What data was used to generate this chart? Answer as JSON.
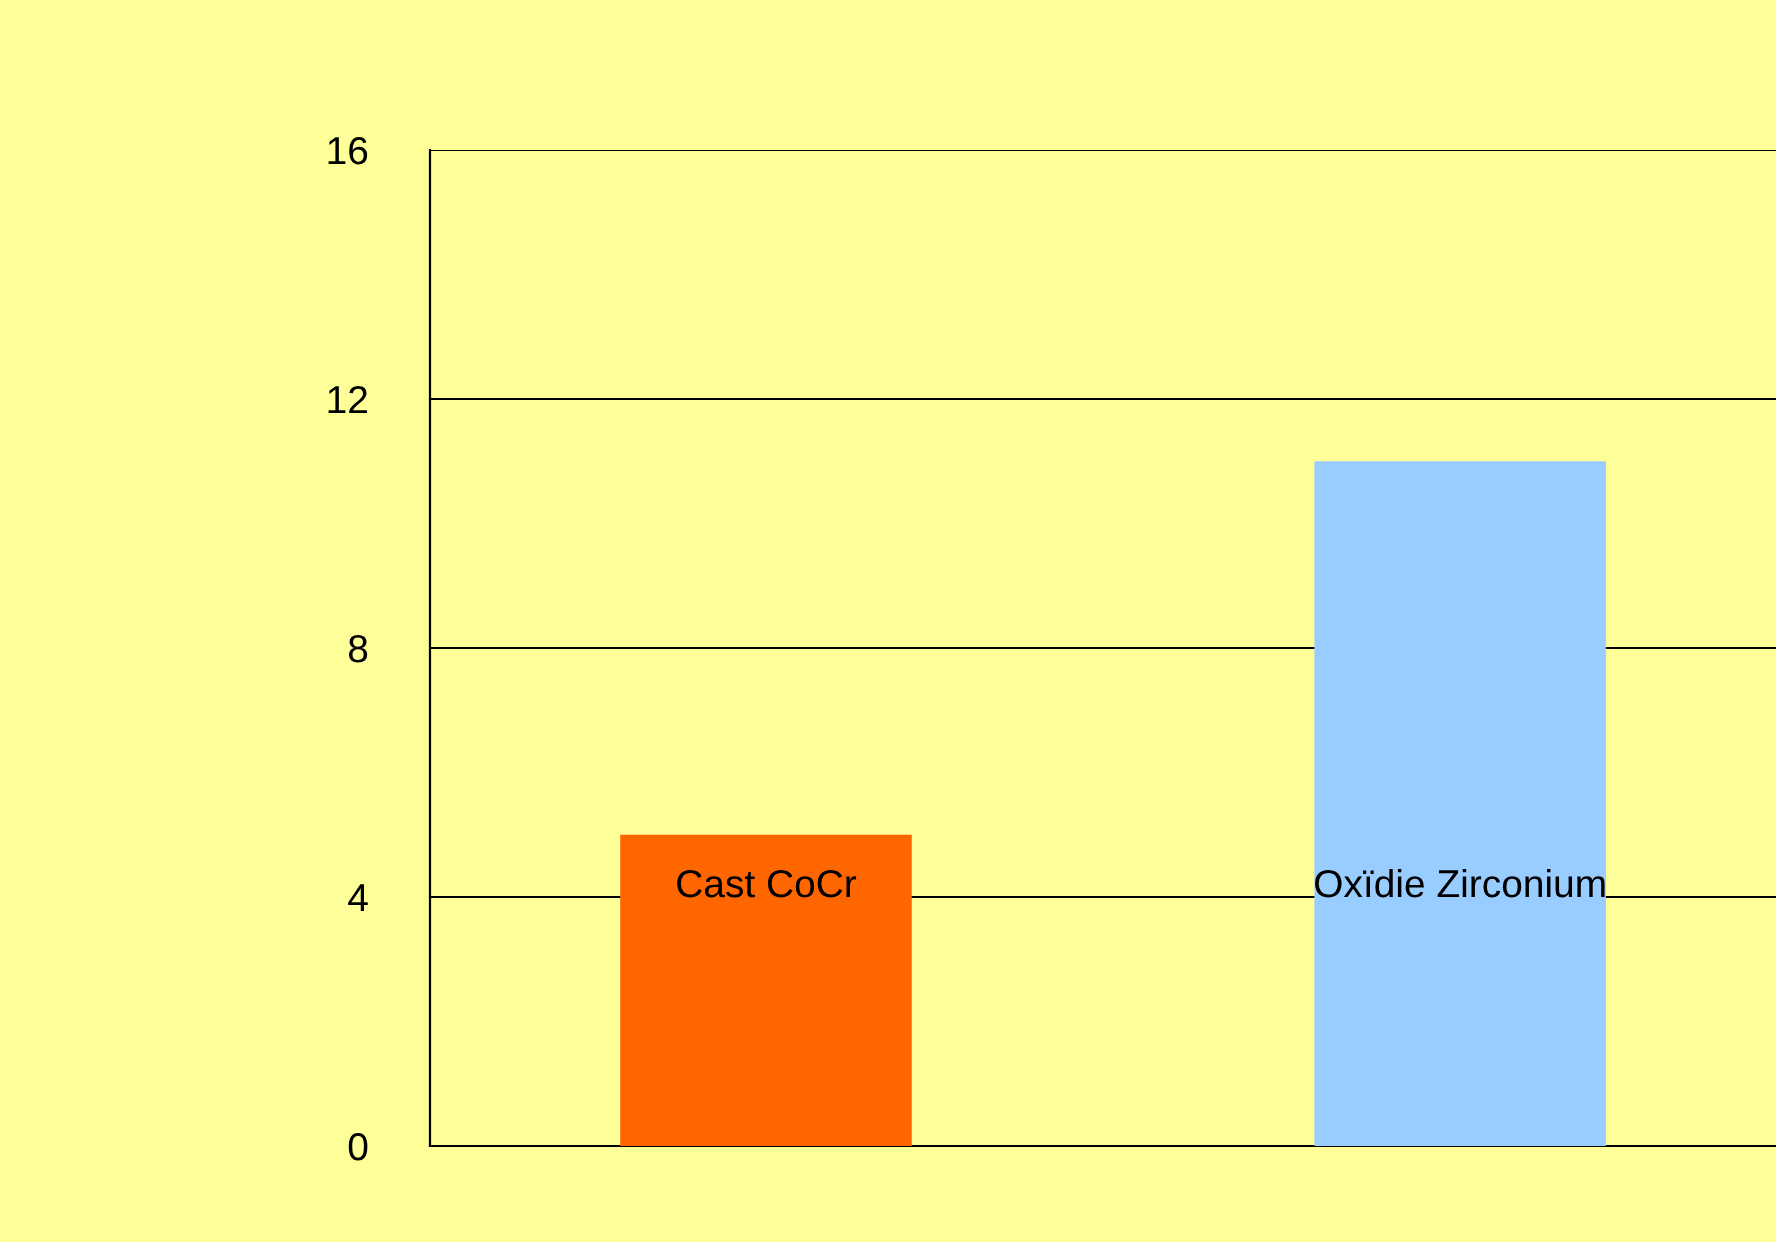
{
  "chart_data": {
    "type": "bar",
    "categories": [
      "Cast CoCr",
      "Oxïdie Zirconium"
    ],
    "values": [
      5,
      11
    ],
    "colors": [
      "#ff6600",
      "#99ccff"
    ],
    "ylim": [
      0,
      16
    ],
    "yticks": [
      0,
      4,
      8,
      12,
      16
    ],
    "grid": "y",
    "legend": false
  }
}
